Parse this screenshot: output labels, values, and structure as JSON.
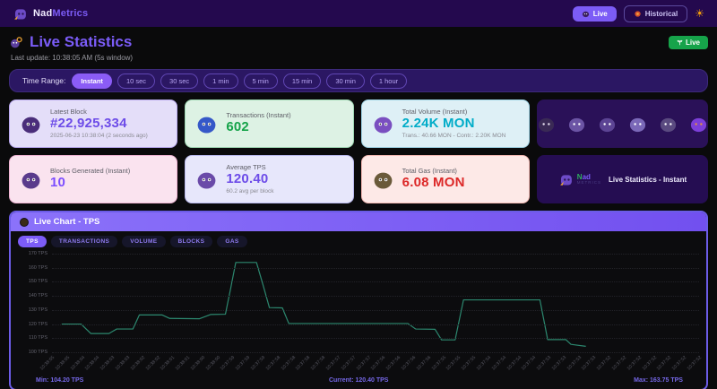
{
  "colors": {
    "accent": "#7c5cf6",
    "header_bg": "#24094e",
    "live_green": "#16a34a",
    "chart_line": "#2e8f75",
    "chart_border": "#6c5ce7"
  },
  "header": {
    "brand_prefix": "Nad",
    "brand_suffix": "Metrics",
    "live_button": "Live",
    "historical_button": "Historical",
    "theme_icon": "sun-icon"
  },
  "page": {
    "title": "Live Statistics",
    "live_badge": "Live",
    "last_update": "Last update: 10:38:05 AM  (5s window)"
  },
  "time_range": {
    "label": "Time Range:",
    "selected": "Instant",
    "options": [
      "Instant",
      "10 sec",
      "30 sec",
      "1 min",
      "5 min",
      "15 min",
      "30 min",
      "1 hour"
    ]
  },
  "cards": [
    {
      "label": "Latest Block",
      "value": "#22,925,334",
      "sub": "2025-06-23 10:38:04 (2 seconds ago)",
      "value_color": "#6d4ce8",
      "bg": "#e4def9",
      "border": "#b9a8ef",
      "icon": "block-mascot-icon",
      "icon_color": "#4a2d7a"
    },
    {
      "label": "Transactions (Instant)",
      "value": "602",
      "sub": "",
      "value_color": "#15a349",
      "bg": "#ddf2e4",
      "border": "#9fd9b4",
      "icon": "transactions-mascot-icon",
      "icon_color": "#3558c8"
    },
    {
      "label": "Total Volume (Instant)",
      "value": "2.24K MON",
      "sub": "Trans.: 40.66 MON - Contr.: 2.20K MON",
      "value_color": "#00acc8",
      "bg": "#def0f6",
      "border": "#9fd4e6",
      "icon": "volume-mascot-icon",
      "icon_color": "#7a4fc0"
    },
    {
      "label": "Blocks Generated (Instant)",
      "value": "10",
      "sub": "",
      "value_color": "#7c4dff",
      "bg": "#fae3ef",
      "border": "#eeb3d2",
      "icon": "spider-icon",
      "icon_color": "#5a3b8c"
    },
    {
      "label": "Average TPS",
      "value": "120.40",
      "sub": "60.2 avg per block",
      "value_color": "#6d4ce8",
      "bg": "#e7e7fb",
      "border": "#b9b9ee",
      "icon": "tps-mascot-icon",
      "icon_color": "#6a4aa8"
    },
    {
      "label": "Total Gas (Instant)",
      "value": "6.08 MON",
      "sub": "",
      "value_color": "#dc2828",
      "bg": "#fde9e7",
      "border": "#f3b9b4",
      "icon": "gas-mascot-icon",
      "icon_color": "#6a5a3a"
    }
  ],
  "mascots": [
    {
      "name": "spiky-creature-icon",
      "body": "#3a2a55",
      "face": "#e8e0f0"
    },
    {
      "name": "fluffy-creature-icon",
      "body": "#6b54a4",
      "face": "#ffffff"
    },
    {
      "name": "bat-creature-icon",
      "body": "#5c4494",
      "face": "#ffffff"
    },
    {
      "name": "flying-creature-icon",
      "body": "#7a68b8",
      "face": "#ffffff"
    },
    {
      "name": "shadow-creature-icon",
      "body": "#5a4a80",
      "face": "#ffffff"
    },
    {
      "name": "whale-creature-icon",
      "body": "#7c3fd8",
      "face": "#e09040"
    }
  ],
  "branding": {
    "brand_prefix": "Nad",
    "brand_suffix": "ad",
    "brand_n": "N",
    "brand_faint": "METRICS",
    "caption": "Live Statistics - Instant"
  },
  "chart": {
    "title": "Live Chart - TPS",
    "selected_tab": "TPS",
    "tabs": [
      "TPS",
      "TRANSACTIONS",
      "VOLUME",
      "BLOCKS",
      "GAS"
    ],
    "footer": {
      "min": "Min: 104.20 TPS",
      "current": "Current: 120.40 TPS",
      "max": "Max: 163.75 TPS"
    }
  },
  "chart_data": {
    "type": "line",
    "title": "Live Chart - TPS",
    "ylabel": "TPS",
    "ylim": [
      100,
      170
    ],
    "y_ticks": [
      170,
      160,
      150,
      140,
      130,
      120,
      110,
      100
    ],
    "y_tick_suffix": " TPS",
    "grid": true,
    "line_color": "#2e8f75",
    "min": 104.2,
    "current": 120.4,
    "max": 163.75,
    "x_desc": "time, newest at left, 5s window",
    "points": [
      [
        1.5,
        120
      ],
      [
        4.5,
        120
      ],
      [
        6,
        113.3
      ],
      [
        8.8,
        113.3
      ],
      [
        10,
        116.5
      ],
      [
        12.5,
        116.5
      ],
      [
        13.5,
        126.5
      ],
      [
        17,
        126.5
      ],
      [
        18.2,
        124
      ],
      [
        22.8,
        123.8
      ],
      [
        24.5,
        126.8
      ],
      [
        26.8,
        127
      ],
      [
        27.6,
        145
      ],
      [
        28.4,
        163.75
      ],
      [
        31.6,
        163.75
      ],
      [
        32.6,
        148
      ],
      [
        33.6,
        131.7
      ],
      [
        35.6,
        131.5
      ],
      [
        36.6,
        120.4
      ],
      [
        55,
        120.4
      ],
      [
        56.2,
        116.5
      ],
      [
        59.2,
        116.3
      ],
      [
        60.2,
        108.8
      ],
      [
        62.3,
        108.8
      ],
      [
        63.6,
        137.2
      ],
      [
        75.4,
        137.2
      ],
      [
        76.6,
        109
      ],
      [
        79.4,
        109
      ],
      [
        80.2,
        105.6
      ],
      [
        82.5,
        104.2
      ]
    ],
    "x_labels": [
      "10:38:05",
      "10:38:05",
      "10:38:04",
      "10:38:04",
      "10:38:03",
      "10:38:03",
      "10:38:02",
      "10:38:02",
      "10:38:01",
      "10:38:01",
      "10:38:00",
      "10:38:00",
      "10:37:59",
      "10:37:59",
      "10:37:59",
      "10:37:58",
      "10:37:58",
      "10:37:58",
      "10:37:58",
      "10:37:57",
      "10:37:57",
      "10:37:57",
      "10:37:56",
      "10:37:56",
      "10:37:56",
      "10:37:56",
      "10:37:55",
      "10:37:55",
      "10:37:55",
      "10:37:54",
      "10:37:54",
      "10:37:54",
      "10:37:54",
      "10:37:53",
      "10:37:53",
      "10:37:53",
      "10:37:53",
      "10:37:52",
      "10:37:52",
      "10:37:52",
      "10:37:52",
      "10:37:52",
      "10:37:52",
      "10:37:52"
    ]
  }
}
